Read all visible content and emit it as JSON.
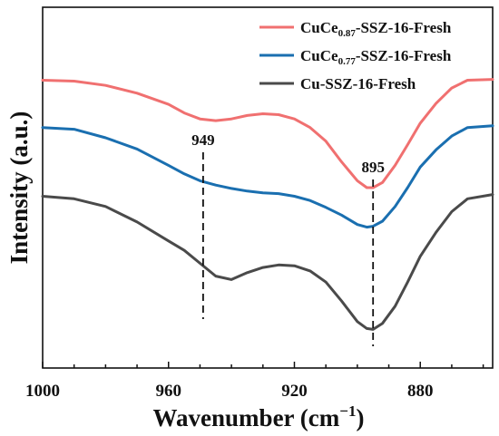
{
  "chart_data": {
    "type": "line",
    "xlabel": "Wavenumber (cm",
    "xlabel_sup": "−1",
    "xlabel_close": ")",
    "ylabel": "Intensity (a.u.)",
    "xlim": [
      1000,
      857
    ],
    "x_reversed": true,
    "xticks": [
      1000,
      960,
      920,
      880
    ],
    "xtick_labels": [
      "1000",
      "960",
      "920",
      "880"
    ],
    "y_ticks_shown": false,
    "grid": false,
    "legend_position": "top-right",
    "series": [
      {
        "name": "CuCe0.87-SSZ-16-Fresh",
        "name_parts": [
          "CuCe",
          "0.87",
          "-SSZ-16-Fresh"
        ],
        "color": "#f07070",
        "x": [
          1000,
          990,
          980,
          970,
          960,
          955,
          950,
          945,
          940,
          935,
          930,
          925,
          920,
          915,
          910,
          905,
          900,
          897,
          895,
          892,
          888,
          884,
          880,
          875,
          870,
          865,
          857
        ],
        "y": [
          2.95,
          2.94,
          2.89,
          2.8,
          2.67,
          2.57,
          2.5,
          2.48,
          2.5,
          2.54,
          2.56,
          2.55,
          2.5,
          2.4,
          2.24,
          2.0,
          1.78,
          1.7,
          1.7,
          1.76,
          1.96,
          2.2,
          2.45,
          2.68,
          2.86,
          2.95,
          2.96
        ]
      },
      {
        "name": "CuCe0.77-SSZ-16-Fresh",
        "name_parts": [
          "CuCe",
          "0.77",
          "-SSZ-16-Fresh"
        ],
        "color": "#1a6fb0",
        "x": [
          1000,
          990,
          980,
          970,
          960,
          955,
          950,
          945,
          940,
          935,
          930,
          925,
          920,
          915,
          910,
          905,
          900,
          897,
          895,
          892,
          888,
          884,
          880,
          875,
          870,
          865,
          857
        ],
        "y": [
          2.4,
          2.38,
          2.28,
          2.15,
          1.96,
          1.86,
          1.78,
          1.73,
          1.69,
          1.66,
          1.64,
          1.63,
          1.6,
          1.55,
          1.47,
          1.38,
          1.27,
          1.24,
          1.25,
          1.31,
          1.48,
          1.7,
          1.94,
          2.14,
          2.3,
          2.4,
          2.42
        ]
      },
      {
        "name": "Cu-SSZ-16-Fresh",
        "name_parts": [
          "Cu-SSZ-16-Fresh"
        ],
        "color": "#4a4a4a",
        "x": [
          1000,
          990,
          980,
          970,
          960,
          955,
          950,
          945,
          940,
          935,
          930,
          925,
          920,
          915,
          910,
          905,
          900,
          897,
          895,
          892,
          888,
          884,
          880,
          875,
          870,
          865,
          857
        ],
        "y": [
          1.6,
          1.57,
          1.48,
          1.3,
          1.08,
          0.97,
          0.82,
          0.67,
          0.63,
          0.71,
          0.77,
          0.8,
          0.79,
          0.73,
          0.6,
          0.38,
          0.14,
          0.06,
          0.05,
          0.12,
          0.32,
          0.6,
          0.9,
          1.18,
          1.42,
          1.57,
          1.62
        ]
      }
    ],
    "ylim": [
      -0.4,
      3.8
    ],
    "annotations": [
      {
        "label": "949",
        "x": 949
      },
      {
        "label": "895",
        "x": 895
      }
    ]
  }
}
